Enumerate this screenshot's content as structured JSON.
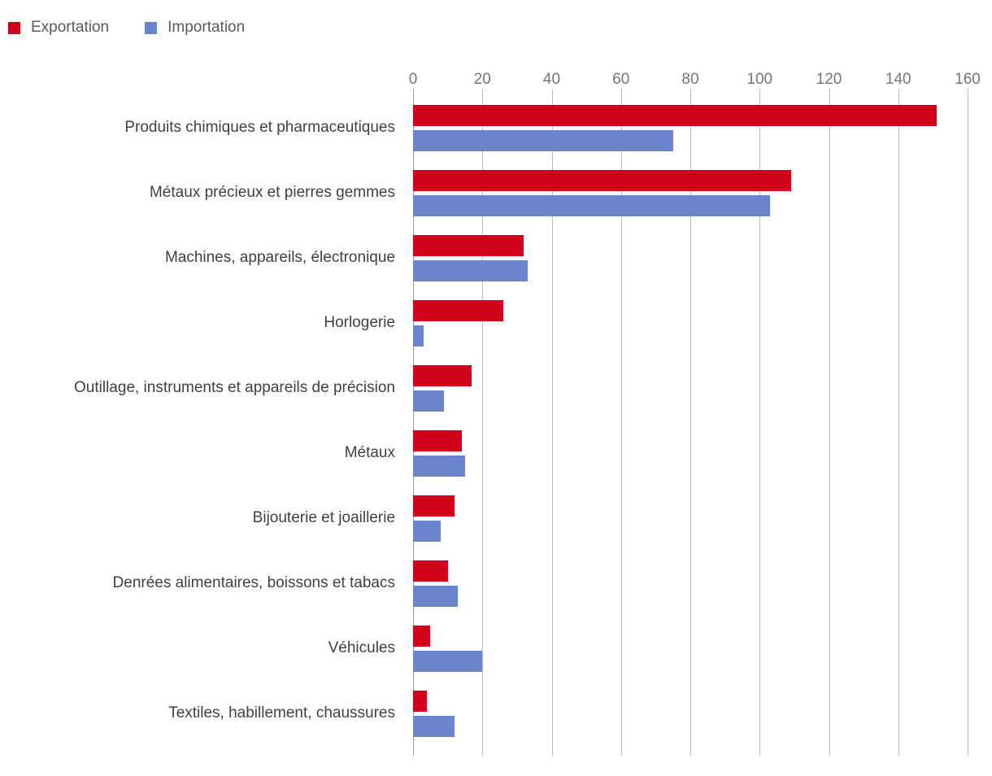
{
  "legend": {
    "items": [
      {
        "label": "Exportation",
        "color": "#d0021b"
      },
      {
        "label": "Importation",
        "color": "#6b84ce"
      }
    ]
  },
  "chart_data": {
    "type": "bar",
    "orientation": "horizontal",
    "title": "",
    "xlabel": "",
    "ylabel": "",
    "xlim": [
      0,
      160
    ],
    "xticks": [
      0,
      20,
      40,
      60,
      80,
      100,
      120,
      140,
      160
    ],
    "grid": true,
    "legend_position": "top-left",
    "categories": [
      "Produits chimiques et pharmaceutiques",
      "Métaux précieux et pierres gemmes",
      "Machines, appareils, électronique",
      "Horlogerie",
      "Outillage, instruments et appareils de précision",
      "Métaux",
      "Bijouterie et joaillerie",
      "Denrées alimentaires, boissons et tabacs",
      "Véhicules",
      "Textiles, habillement, chaussures"
    ],
    "series": [
      {
        "name": "Exportation",
        "color": "#d0021b",
        "values": [
          151,
          109,
          32,
          26,
          17,
          14,
          12,
          10,
          5,
          4
        ]
      },
      {
        "name": "Importation",
        "color": "#6b84ce",
        "values": [
          75,
          103,
          33,
          3,
          9,
          15,
          8,
          13,
          20,
          12
        ]
      }
    ]
  }
}
